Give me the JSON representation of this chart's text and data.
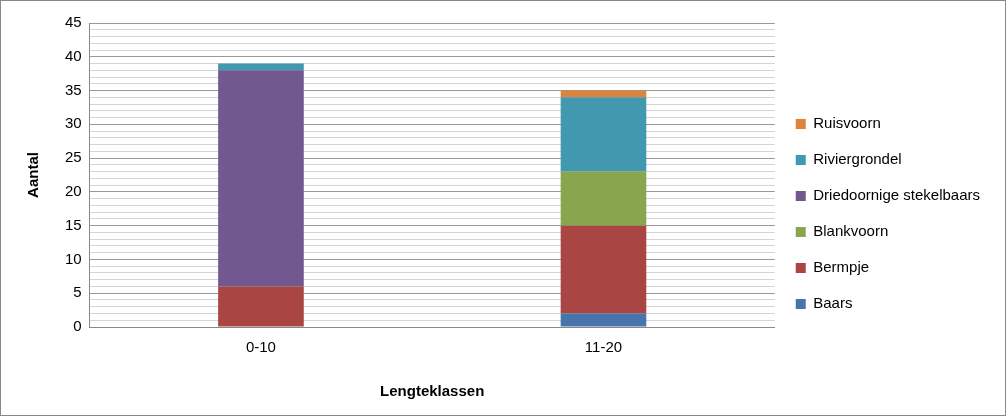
{
  "chart_data": {
    "type": "bar",
    "stacked": true,
    "categories": [
      "0-10",
      "11-20"
    ],
    "xlabel": "Lengteklassen",
    "ylabel": "Aantal",
    "series": [
      {
        "name": "Baars",
        "color": "#4674ab",
        "values": [
          null,
          2
        ]
      },
      {
        "name": "Bermpje",
        "color": "#a94643",
        "values": [
          6,
          13
        ]
      },
      {
        "name": "Blankvoorn",
        "color": "#89a54e",
        "values": [
          null,
          8
        ]
      },
      {
        "name": "Driedoornige stekelbaars",
        "color": "#71588f",
        "values": [
          32,
          null
        ]
      },
      {
        "name": "Riviergrondel",
        "color": "#4198af",
        "values": [
          1,
          11
        ]
      },
      {
        "name": "Ruisvoorn",
        "color": "#db843d",
        "values": [
          null,
          1
        ]
      }
    ],
    "ylim": [
      0,
      45
    ],
    "yticks": [
      0,
      {
        "value": 1,
        "label": null
      },
      {
        "value": 2,
        "label": null
      },
      {
        "value": 3,
        "label": null
      },
      {
        "value": 4,
        "label": null
      },
      5,
      {
        "value": 6,
        "label": null
      },
      {
        "value": 7,
        "label": null
      },
      {
        "value": 8,
        "label": null
      },
      {
        "value": 9,
        "label": null
      },
      10,
      {
        "value": 11,
        "label": null
      },
      {
        "value": 12,
        "label": null
      },
      {
        "value": 13,
        "label": null
      },
      {
        "value": 14,
        "label": null
      },
      15,
      {
        "value": 16,
        "label": null
      },
      {
        "value": 17,
        "label": null
      },
      {
        "value": 18,
        "label": null
      },
      {
        "value": 19,
        "label": null
      },
      20,
      {
        "value": 21,
        "label": null
      },
      {
        "value": 22,
        "label": null
      },
      {
        "value": 23,
        "label": null
      },
      {
        "value": 24,
        "label": null
      },
      25,
      {
        "value": 26,
        "label": null
      },
      {
        "value": 27,
        "label": null
      },
      {
        "value": 28,
        "label": null
      },
      {
        "value": 29,
        "label": null
      },
      30,
      {
        "value": 31,
        "label": null
      },
      {
        "value": 32,
        "label": null
      },
      {
        "value": 33,
        "label": null
      },
      {
        "value": 34,
        "label": null
      },
      35,
      {
        "value": 36,
        "label": null
      },
      {
        "value": 37,
        "label": null
      },
      {
        "value": 38,
        "label": null
      },
      {
        "value": 39,
        "label": null
      },
      40,
      {
        "value": 41,
        "label": null
      },
      {
        "value": 42,
        "label": null
      },
      {
        "value": 43,
        "label": null
      },
      {
        "value": 44,
        "label": null
      },
      45
    ],
    "grid": "y",
    "legend": "right"
  }
}
